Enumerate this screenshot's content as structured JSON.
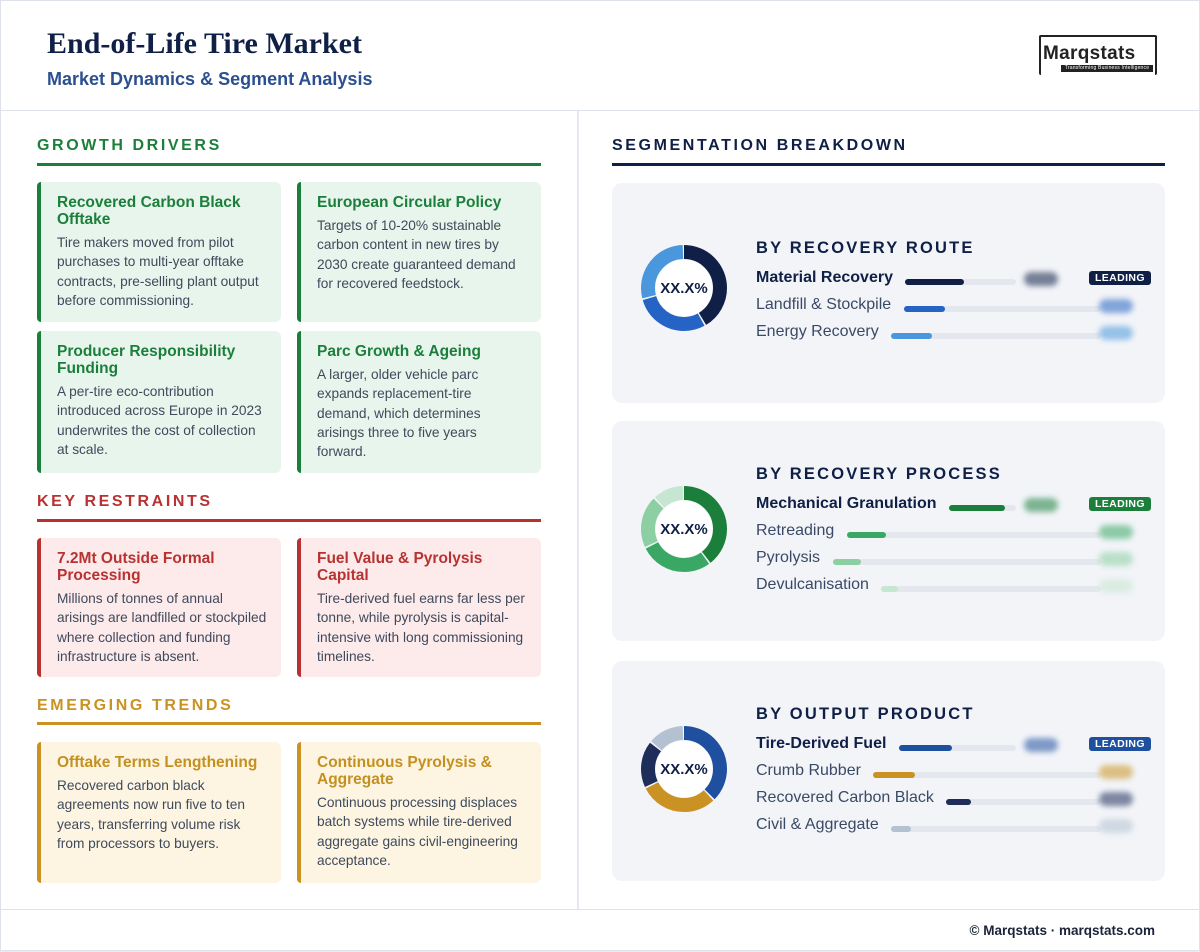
{
  "header": {
    "title": "End-of-Life Tire Market",
    "subtitle": "Market Dynamics & Segment Analysis",
    "logo_text": "Marqstats",
    "logo_tagline": "Transforming Business Intelligence"
  },
  "drivers": {
    "heading": "GROWTH DRIVERS",
    "color": "#1b7f3b",
    "cards": [
      {
        "title": "Recovered Carbon Black Offtake",
        "body": "Tire makers moved from pilot purchases to multi-year offtake contracts, pre-selling plant output before commissioning."
      },
      {
        "title": "European Circular Policy",
        "body": "Targets of 10-20% sustainable carbon content in new tires by 2030 create guaranteed demand for recovered feedstock."
      },
      {
        "title": "Producer Responsibility Funding",
        "body": "A per-tire eco-contribution introduced across Europe in 2023 underwrites the cost of collection at scale."
      },
      {
        "title": "Parc Growth & Ageing",
        "body": "A larger, older vehicle parc expands replacement-tire demand, which determines arisings three to five years forward."
      }
    ]
  },
  "restraints": {
    "heading": "KEY RESTRAINTS",
    "color": "#b83232",
    "cards": [
      {
        "title": "7.2Mt Outside Formal Processing",
        "body": "Millions of tonnes of annual arisings are landfilled or stockpiled where collection and funding infrastructure is absent."
      },
      {
        "title": "Fuel Value & Pyrolysis Capital",
        "body": "Tire-derived fuel earns far less per tonne, while pyrolysis is capital-intensive with long commissioning timelines."
      }
    ]
  },
  "trends": {
    "heading": "EMERGING TRENDS",
    "color": "#c99222",
    "cards": [
      {
        "title": "Offtake Terms Lengthening",
        "body": "Recovered carbon black agreements now run five to ten years, transferring volume risk from processors to buyers."
      },
      {
        "title": "Continuous Pyrolysis & Aggregate",
        "body": "Continuous processing displaces batch systems while tire-derived aggregate gains civil-engineering acceptance."
      }
    ]
  },
  "segmentation": {
    "heading": "SEGMENTATION BREAKDOWN",
    "panels": [
      {
        "heading": "BY RECOVERY ROUTE",
        "donut_label": "XX.X%",
        "badge": "LEADING",
        "rows": [
          {
            "label": "Material Recovery",
            "share": 0.42,
            "color": "#0f1f46"
          },
          {
            "label": "Landfill & Stockpile",
            "share": 0.29,
            "color": "#2563c4"
          },
          {
            "label": "Energy Recovery",
            "share": 0.29,
            "color": "#4a97dd"
          }
        ]
      },
      {
        "heading": "BY RECOVERY PROCESS",
        "donut_label": "XX.X%",
        "badge": "LEADING",
        "rows": [
          {
            "label": "Mechanical Granulation",
            "share": 0.4,
            "color": "#1b7f3b"
          },
          {
            "label": "Retreading",
            "share": 0.28,
            "color": "#3aa864"
          },
          {
            "label": "Pyrolysis",
            "share": 0.2,
            "color": "#8ccfa2"
          },
          {
            "label": "Devulcanisation",
            "share": 0.12,
            "color": "#c7e6d1"
          }
        ]
      },
      {
        "heading": "BY OUTPUT PRODUCT",
        "donut_label": "XX.X%",
        "badge": "LEADING",
        "rows": [
          {
            "label": "Tire-Derived Fuel",
            "share": 0.38,
            "color": "#1f4f9f"
          },
          {
            "label": "Crumb Rubber",
            "share": 0.3,
            "color": "#c99222"
          },
          {
            "label": "Recovered Carbon Black",
            "share": 0.18,
            "color": "#1e2d5a"
          },
          {
            "label": "Civil & Aggregate",
            "share": 0.14,
            "color": "#b4c1d1"
          }
        ]
      }
    ]
  },
  "footer": {
    "text": "© Marqstats · marqstats.com"
  }
}
